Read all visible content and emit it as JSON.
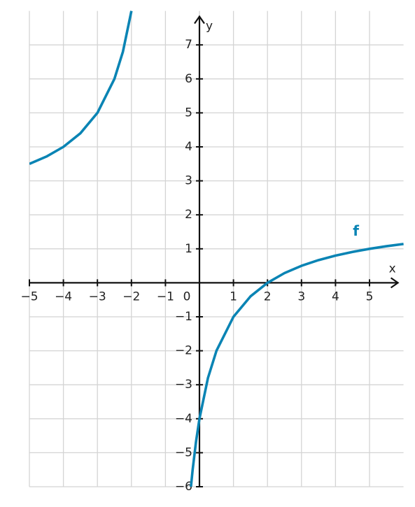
{
  "chart_data": {
    "type": "line",
    "x": [
      -5,
      -4.5,
      -4,
      -3.5,
      -3,
      -2.5,
      -2.25,
      -2,
      -1,
      -0.25,
      -0.2,
      -0.1,
      0,
      0.25,
      0.5,
      1,
      1.5,
      2,
      2.5,
      3,
      3.5,
      4,
      4.5,
      5,
      5.5,
      6
    ],
    "series": [
      {
        "name": "f",
        "color": "#0a84b4",
        "values": [
          3.5,
          3.714,
          4,
          4.4,
          5,
          6,
          6.8,
          8,
          null,
          -6,
          -5.5,
          -4.667,
          -4,
          -2.8,
          -2,
          -1,
          -0.4,
          0,
          0.286,
          0.5,
          0.667,
          0.8,
          0.909,
          1,
          1.077,
          1.143
        ]
      }
    ],
    "x_label": "x",
    "y_label": "y",
    "xlim": [
      -5,
      6
    ],
    "ylim": [
      -6,
      8
    ],
    "xticks": [
      {
        "value": -5,
        "label": "−5"
      },
      {
        "value": -4,
        "label": "−4"
      },
      {
        "value": -3,
        "label": "−3"
      },
      {
        "value": -2,
        "label": "−2"
      },
      {
        "value": -1,
        "label": "−1"
      },
      0,
      1,
      2,
      3,
      4,
      5
    ],
    "yticks": [
      {
        "value": -6,
        "label": "−6"
      },
      {
        "value": -5,
        "label": "−5"
      },
      {
        "value": -4,
        "label": "−4"
      },
      {
        "value": -3,
        "label": "−3"
      },
      {
        "value": -2,
        "label": "−2"
      },
      {
        "value": -1,
        "label": "−1"
      },
      1,
      2,
      3,
      4,
      5,
      6,
      7
    ],
    "grid": true
  }
}
